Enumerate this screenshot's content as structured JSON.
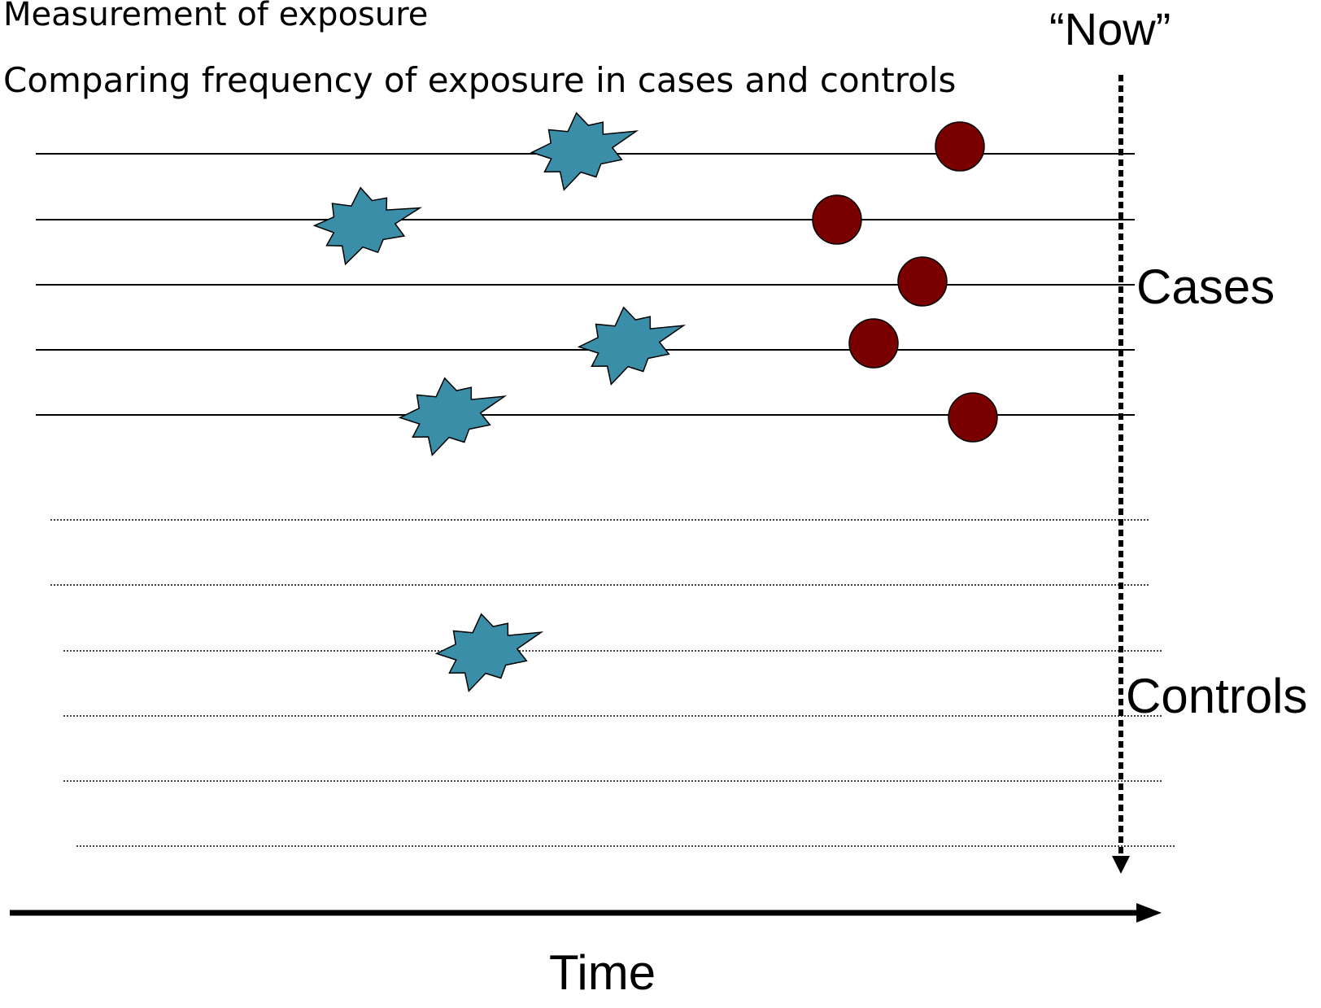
{
  "header": {
    "line1": "Measurement of exposure",
    "line2": "Comparing frequency of exposure in cases and controls"
  },
  "labels": {
    "now": "“Now”",
    "cases": "Cases",
    "controls": "Controls",
    "time": "Time"
  },
  "legend_semantics": {
    "exposure_marker": "exposure-star-icon",
    "outcome_marker": "outcome-dot-icon"
  },
  "colors": {
    "exposure": "#3b8ea8",
    "outcome": "#7a0000",
    "line": "#000000"
  },
  "groups": {
    "cases": {
      "count": 5,
      "exposed": 4,
      "with_outcome": 5
    },
    "controls": {
      "count": 6,
      "exposed": 1,
      "with_outcome": 0
    }
  }
}
